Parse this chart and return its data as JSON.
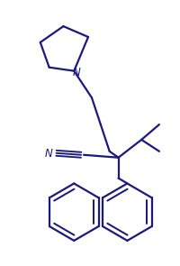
{
  "bg_color": "#ffffff",
  "line_color": "#1a1a7e",
  "line_width": 1.6,
  "fig_width": 2.0,
  "fig_height": 2.95,
  "dpi": 100
}
